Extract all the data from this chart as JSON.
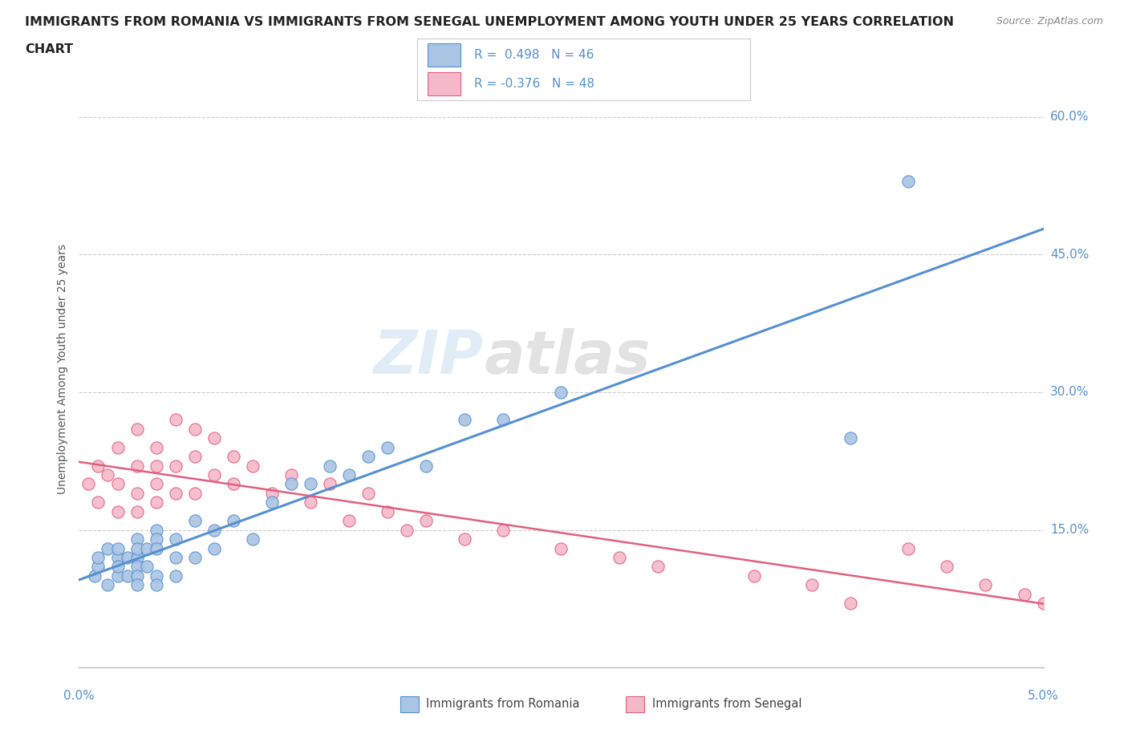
{
  "title_line1": "IMMIGRANTS FROM ROMANIA VS IMMIGRANTS FROM SENEGAL UNEMPLOYMENT AMONG YOUTH UNDER 25 YEARS CORRELATION",
  "title_line2": "CHART",
  "source_text": "Source: ZipAtlas.com",
  "ylabel": "Unemployment Among Youth under 25 years",
  "xlim": [
    0.0,
    0.05
  ],
  "ylim": [
    0.0,
    0.65
  ],
  "xtick_positions": [
    0.0,
    0.01,
    0.02,
    0.03,
    0.04,
    0.05
  ],
  "ytick_positions": [
    0.0,
    0.15,
    0.3,
    0.45,
    0.6
  ],
  "ytick_labels": [
    "",
    "15.0%",
    "30.0%",
    "45.0%",
    "60.0%"
  ],
  "background_color": "#ffffff",
  "grid_color": "#cccccc",
  "watermark_text1": "ZIP",
  "watermark_text2": "atlas",
  "romania_color": "#aac4e4",
  "senegal_color": "#f5b8c8",
  "romania_line_color": "#5590d0",
  "senegal_line_color": "#e06080",
  "legend_romania": "R =  0.498   N = 46",
  "legend_senegal": "R = -0.376   N = 48",
  "romania_scatter_x": [
    0.0008,
    0.001,
    0.001,
    0.0015,
    0.0015,
    0.002,
    0.002,
    0.002,
    0.002,
    0.0025,
    0.0025,
    0.003,
    0.003,
    0.003,
    0.003,
    0.003,
    0.003,
    0.0035,
    0.0035,
    0.004,
    0.004,
    0.004,
    0.004,
    0.004,
    0.005,
    0.005,
    0.005,
    0.006,
    0.006,
    0.007,
    0.007,
    0.008,
    0.009,
    0.01,
    0.011,
    0.012,
    0.013,
    0.014,
    0.015,
    0.016,
    0.018,
    0.02,
    0.022,
    0.025,
    0.04,
    0.043
  ],
  "romania_scatter_y": [
    0.1,
    0.11,
    0.12,
    0.09,
    0.13,
    0.1,
    0.12,
    0.13,
    0.11,
    0.12,
    0.1,
    0.14,
    0.12,
    0.13,
    0.11,
    0.1,
    0.09,
    0.13,
    0.11,
    0.15,
    0.14,
    0.13,
    0.1,
    0.09,
    0.14,
    0.12,
    0.1,
    0.16,
    0.12,
    0.15,
    0.13,
    0.16,
    0.14,
    0.18,
    0.2,
    0.2,
    0.22,
    0.21,
    0.23,
    0.24,
    0.22,
    0.27,
    0.27,
    0.3,
    0.25,
    0.53
  ],
  "senegal_scatter_x": [
    0.0005,
    0.001,
    0.001,
    0.0015,
    0.002,
    0.002,
    0.002,
    0.003,
    0.003,
    0.003,
    0.003,
    0.004,
    0.004,
    0.004,
    0.004,
    0.005,
    0.005,
    0.005,
    0.006,
    0.006,
    0.006,
    0.007,
    0.007,
    0.008,
    0.008,
    0.009,
    0.01,
    0.011,
    0.012,
    0.013,
    0.014,
    0.015,
    0.016,
    0.017,
    0.018,
    0.02,
    0.022,
    0.025,
    0.028,
    0.03,
    0.035,
    0.038,
    0.04,
    0.043,
    0.045,
    0.047,
    0.049,
    0.05
  ],
  "senegal_scatter_y": [
    0.2,
    0.22,
    0.18,
    0.21,
    0.24,
    0.2,
    0.17,
    0.26,
    0.22,
    0.19,
    0.17,
    0.24,
    0.22,
    0.2,
    0.18,
    0.27,
    0.22,
    0.19,
    0.26,
    0.23,
    0.19,
    0.25,
    0.21,
    0.23,
    0.2,
    0.22,
    0.19,
    0.21,
    0.18,
    0.2,
    0.16,
    0.19,
    0.17,
    0.15,
    0.16,
    0.14,
    0.15,
    0.13,
    0.12,
    0.11,
    0.1,
    0.09,
    0.07,
    0.13,
    0.11,
    0.09,
    0.08,
    0.07
  ]
}
